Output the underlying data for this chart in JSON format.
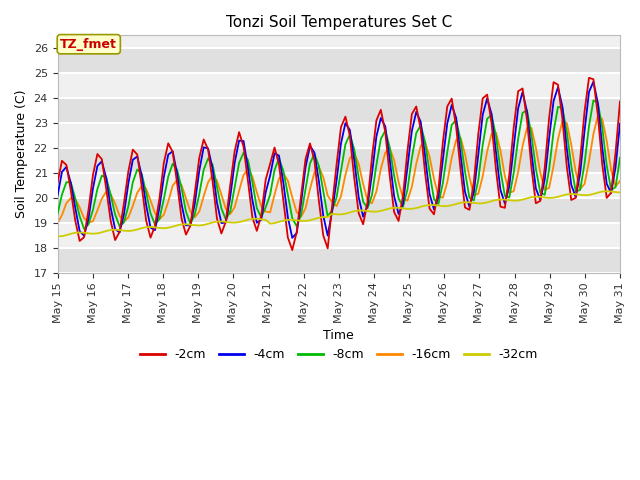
{
  "title": "Tonzi Soil Temperatures Set C",
  "xlabel": "Time",
  "ylabel": "Soil Temperature (C)",
  "ylim": [
    17.0,
    26.5
  ],
  "yticks": [
    17.0,
    18.0,
    19.0,
    20.0,
    21.0,
    22.0,
    23.0,
    24.0,
    25.0,
    26.0
  ],
  "fig_bg_color": "#ffffff",
  "plot_bg_color": "#f0f0f0",
  "series_colors": {
    "-2cm": "#dd0000",
    "-4cm": "#0000ee",
    "-8cm": "#00bb00",
    "-16cm": "#ff8800",
    "-32cm": "#cccc00"
  },
  "annotation_label": "TZ_fmet",
  "annotation_color": "#cc0000",
  "annotation_bg": "#ffffcc",
  "annotation_border": "#999900",
  "start_day": 15,
  "lw": 1.3,
  "grid_color": "#ffffff",
  "grid_lw": 1.5,
  "title_fontsize": 11,
  "axis_fontsize": 9,
  "tick_fontsize": 8
}
